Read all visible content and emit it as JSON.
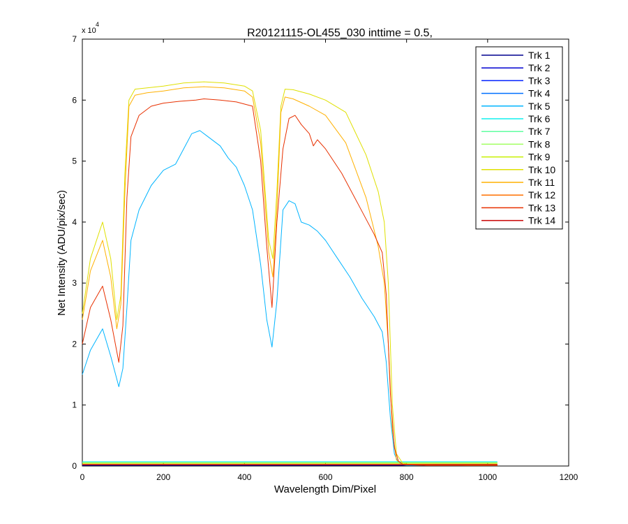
{
  "chart_data": {
    "type": "line",
    "title": "R20121115-OL455_030 inttime = 0.5,",
    "xlabel": "Wavelength Dim/Pixel",
    "ylabel": "Net Intensity (ADU/pix/sec)",
    "y_multiplier_label": "x 10",
    "y_multiplier_exponent": "4",
    "xlim": [
      0,
      1200
    ],
    "ylim": [
      0,
      70000
    ],
    "xticks": [
      0,
      200,
      400,
      600,
      800,
      1000,
      1200
    ],
    "yticks": [
      0,
      10000,
      20000,
      30000,
      40000,
      50000,
      60000,
      70000
    ],
    "ytick_labels": [
      "0",
      "1",
      "2",
      "3",
      "4",
      "5",
      "6",
      "7"
    ],
    "grid": false,
    "legend_position": "top-right",
    "series": [
      {
        "name": "Trk 1",
        "color": "#00008f",
        "x": [
          0,
          1024
        ],
        "y": [
          100,
          100
        ]
      },
      {
        "name": "Trk 2",
        "color": "#0000d0",
        "x": [
          0,
          1024
        ],
        "y": [
          150,
          150
        ]
      },
      {
        "name": "Trk 3",
        "color": "#0020ff",
        "x": [
          0,
          1024
        ],
        "y": [
          200,
          200
        ]
      },
      {
        "name": "Trk 4",
        "color": "#0070ff",
        "x": [
          0,
          1024
        ],
        "y": [
          250,
          250
        ]
      },
      {
        "name": "Trk 5",
        "color": "#00b4ff",
        "x": [
          0,
          20,
          50,
          70,
          90,
          100,
          110,
          120,
          140,
          170,
          200,
          230,
          250,
          270,
          290,
          310,
          340,
          360,
          380,
          400,
          420,
          440,
          455,
          468,
          480,
          495,
          510,
          525,
          540,
          560,
          580,
          600,
          630,
          660,
          690,
          720,
          740,
          750,
          760,
          770,
          780,
          790,
          800,
          850,
          950,
          1024
        ],
        "y": [
          15000,
          19000,
          22500,
          18000,
          13000,
          16000,
          26000,
          37000,
          42000,
          46000,
          48500,
          49500,
          52000,
          54500,
          55000,
          54000,
          52500,
          50500,
          49000,
          46000,
          42000,
          33000,
          24000,
          19500,
          27000,
          42000,
          43500,
          43000,
          40000,
          39500,
          38500,
          37000,
          34000,
          31000,
          27500,
          24500,
          22000,
          17000,
          8000,
          2000,
          500,
          200,
          100,
          100,
          100,
          100
        ]
      },
      {
        "name": "Trk 6",
        "color": "#10f0ee",
        "x": [
          0,
          1024
        ],
        "y": [
          700,
          700
        ]
      },
      {
        "name": "Trk 7",
        "color": "#60ffa0",
        "x": [
          0,
          1024
        ],
        "y": [
          600,
          600
        ]
      },
      {
        "name": "Trk 8",
        "color": "#a0ff60",
        "x": [
          0,
          1024
        ],
        "y": [
          500,
          500
        ]
      },
      {
        "name": "Trk 9",
        "color": "#c8f000",
        "x": [
          0,
          1024
        ],
        "y": [
          450,
          450
        ]
      },
      {
        "name": "Trk 10",
        "color": "#dfe000",
        "x": [
          0,
          20,
          50,
          70,
          85,
          95,
          105,
          115,
          130,
          160,
          200,
          250,
          300,
          350,
          400,
          420,
          440,
          460,
          470,
          480,
          490,
          500,
          520,
          560,
          600,
          650,
          700,
          730,
          745,
          755,
          765,
          775,
          790,
          800,
          850,
          950,
          1024
        ],
        "y": [
          25000,
          34000,
          40000,
          34000,
          24000,
          28000,
          48000,
          60000,
          61800,
          62000,
          62300,
          62800,
          63000,
          62800,
          62300,
          61500,
          55000,
          37000,
          34000,
          45000,
          59000,
          61800,
          61700,
          61000,
          60000,
          58000,
          51000,
          45000,
          40000,
          30000,
          10000,
          2000,
          500,
          300,
          200,
          100,
          100
        ]
      },
      {
        "name": "Trk 11",
        "color": "#ffb000",
        "x": [
          0,
          20,
          50,
          70,
          85,
          95,
          105,
          115,
          130,
          160,
          200,
          250,
          300,
          350,
          400,
          420,
          440,
          460,
          470,
          480,
          490,
          500,
          520,
          560,
          600,
          650,
          700,
          730,
          745,
          755,
          765,
          775,
          790,
          800,
          850,
          950,
          1024
        ],
        "y": [
          24000,
          32000,
          37000,
          31000,
          22500,
          26500,
          45000,
          59000,
          60800,
          61200,
          61500,
          62000,
          62200,
          62000,
          61500,
          60500,
          53000,
          35000,
          31000,
          42000,
          58000,
          60500,
          60200,
          59000,
          57500,
          53000,
          44000,
          36000,
          30000,
          20000,
          6000,
          1000,
          300,
          200,
          100,
          100,
          100
        ]
      },
      {
        "name": "Trk 12",
        "color": "#ff7000",
        "x": [
          0,
          1024
        ],
        "y": [
          300,
          300
        ]
      },
      {
        "name": "Trk 13",
        "color": "#e83000",
        "x": [
          0,
          20,
          50,
          70,
          90,
          100,
          110,
          120,
          140,
          170,
          200,
          240,
          280,
          300,
          340,
          380,
          420,
          440,
          455,
          468,
          480,
          495,
          510,
          525,
          540,
          560,
          570,
          580,
          600,
          640,
          680,
          720,
          740,
          750,
          760,
          770,
          780,
          790,
          800,
          850,
          950,
          1024
        ],
        "y": [
          20000,
          26000,
          29500,
          24000,
          17000,
          23000,
          44000,
          54000,
          57500,
          59000,
          59500,
          59800,
          60000,
          60200,
          60000,
          59700,
          59000,
          50000,
          36000,
          26000,
          40000,
          52000,
          57000,
          57500,
          56000,
          54500,
          52500,
          53500,
          52000,
          48000,
          43000,
          38000,
          35000,
          28000,
          12000,
          3000,
          800,
          300,
          200,
          100,
          100,
          100
        ]
      },
      {
        "name": "Trk 14",
        "color": "#c80000",
        "x": [
          0,
          1024
        ],
        "y": [
          200,
          200
        ]
      }
    ]
  }
}
